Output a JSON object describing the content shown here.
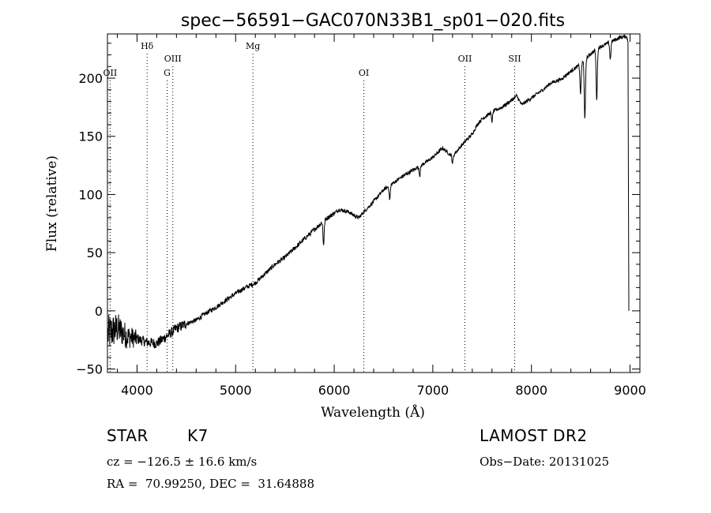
{
  "chart_data": {
    "type": "line",
    "title": "spec−56591−GAC070N33B1_sp01−020.fits",
    "xlabel": "Wavelength (Å)",
    "ylabel": "Flux (relative)",
    "xlim": [
      3700,
      9100
    ],
    "ylim": [
      -53,
      238
    ],
    "xticks": [
      4000,
      5000,
      6000,
      7000,
      8000,
      9000
    ],
    "xtick_labels": [
      "4000",
      "5000",
      "6000",
      "7000",
      "8000",
      "9000"
    ],
    "yticks": [
      -50,
      0,
      50,
      100,
      150,
      200
    ],
    "ytick_labels": [
      "−50",
      "0",
      "50",
      "100",
      "150",
      "200"
    ],
    "grid": false,
    "spectrum_anchors": {
      "wavelength": [
        3705,
        3800,
        3900,
        4000,
        4100,
        4200,
        4300,
        4400,
        4500,
        4600,
        4700,
        4800,
        4900,
        5000,
        5100,
        5200,
        5300,
        5400,
        5500,
        5600,
        5700,
        5800,
        5900,
        6000,
        6050,
        6100,
        6150,
        6200,
        6250,
        6300,
        6400,
        6500,
        6600,
        6700,
        6800,
        6900,
        7000,
        7050,
        7100,
        7150,
        7200,
        7300,
        7400,
        7450,
        7500,
        7600,
        7700,
        7800,
        7850,
        7900,
        8000,
        8100,
        8200,
        8300,
        8400,
        8500,
        8600,
        8700,
        8800,
        8900,
        8960,
        8980
      ],
      "flux": [
        -20,
        -15,
        -22,
        -24,
        -27,
        -28,
        -22,
        -15,
        -11,
        -8,
        -2,
        3,
        9,
        15,
        20,
        24,
        32,
        40,
        46,
        54,
        62,
        70,
        78,
        84,
        87,
        86,
        85,
        82,
        80,
        85,
        94,
        104,
        110,
        116,
        121,
        126,
        132,
        136,
        140,
        136,
        133,
        143,
        152,
        160,
        165,
        171,
        175,
        181,
        185,
        177,
        183,
        189,
        196,
        199,
        206,
        212,
        221,
        227,
        231,
        235,
        236,
        232
      ],
      "absorption_features": [
        {
          "wavelength": 5892,
          "depth": 20
        },
        {
          "wavelength": 6563,
          "depth": 12
        },
        {
          "wavelength": 6868,
          "depth": 8
        },
        {
          "wavelength": 7200,
          "depth": 6
        },
        {
          "wavelength": 7600,
          "depth": 8
        },
        {
          "wavelength": 8498,
          "depth": 25
        },
        {
          "wavelength": 8542,
          "depth": 52
        },
        {
          "wavelength": 8662,
          "depth": 43
        },
        {
          "wavelength": 8800,
          "depth": 15
        }
      ],
      "final_drop_to": 0
    },
    "annotations": [
      {
        "label": "OII",
        "wavelength": 3727,
        "row": "low"
      },
      {
        "label": "Hδ",
        "wavelength": 4102,
        "row": "high"
      },
      {
        "label": "G",
        "wavelength": 4305,
        "row": "low"
      },
      {
        "label": "OIII",
        "wavelength": 4363,
        "row": "mid"
      },
      {
        "label": "Mg",
        "wavelength": 5175,
        "row": "high"
      },
      {
        "label": "OI",
        "wavelength": 6300,
        "row": "low"
      },
      {
        "label": "OII",
        "wavelength": 7325,
        "row": "mid"
      },
      {
        "label": "SII",
        "wavelength": 7830,
        "row": "mid"
      }
    ]
  },
  "info": {
    "object_class": "STAR",
    "subclass": "K7",
    "survey": "LAMOST DR2",
    "cz": "cz = −126.5 ± 16.6 km/s",
    "obs_date": "Obs−Date: 20131025",
    "radec": "RA =  70.99250, DEC =  31.64888"
  },
  "colors": {
    "background": "#ffffff",
    "foreground": "#000000"
  }
}
